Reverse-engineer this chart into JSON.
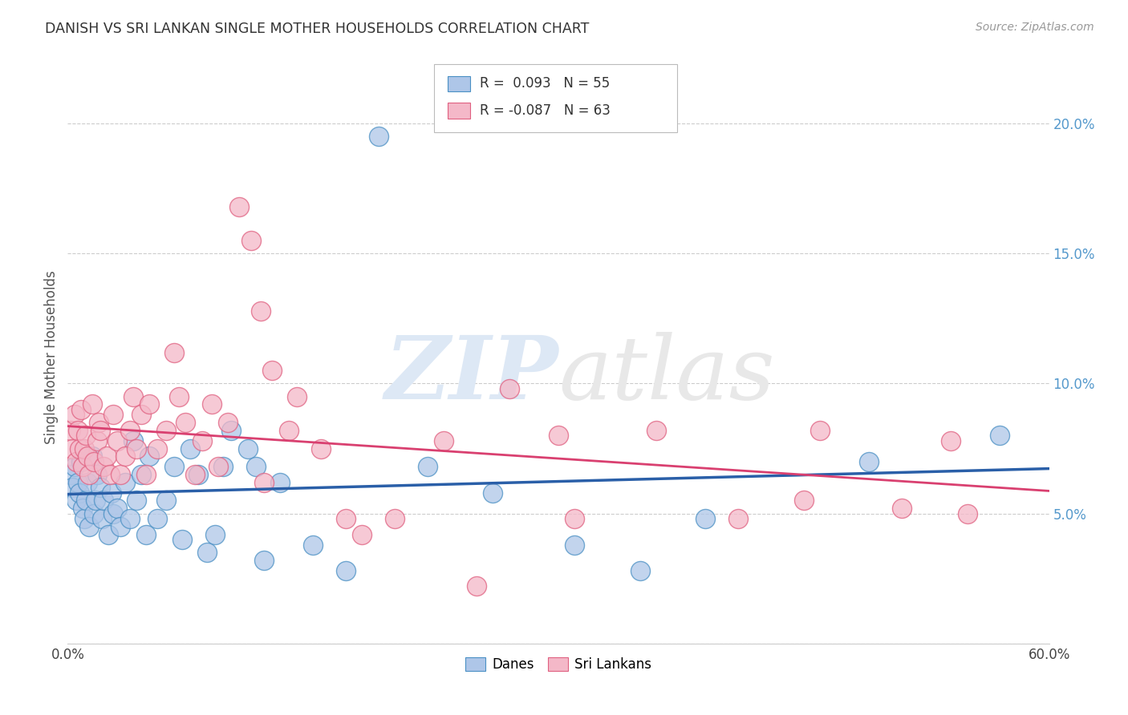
{
  "title": "DANISH VS SRI LANKAN SINGLE MOTHER HOUSEHOLDS CORRELATION CHART",
  "source": "Source: ZipAtlas.com",
  "ylabel": "Single Mother Households",
  "xlim": [
    0.0,
    0.6
  ],
  "ylim": [
    0.0,
    0.22
  ],
  "xticks": [
    0.0,
    0.1,
    0.2,
    0.3,
    0.4,
    0.5,
    0.6
  ],
  "xticklabels": [
    "0.0%",
    "",
    "",
    "",
    "",
    "",
    "60.0%"
  ],
  "yticks": [
    0.0,
    0.05,
    0.1,
    0.15,
    0.2
  ],
  "yticklabels_right": [
    "",
    "5.0%",
    "10.0%",
    "15.0%",
    "20.0%"
  ],
  "danes_R": 0.093,
  "danes_N": 55,
  "srilankans_R": -0.087,
  "srilankans_N": 63,
  "blue_fill": "#aec6e8",
  "blue_edge": "#4a90c4",
  "pink_fill": "#f4b8c8",
  "pink_edge": "#e06080",
  "blue_line": "#2a5fa8",
  "pink_line": "#d94070",
  "right_tick_color": "#5599cc",
  "watermark_color": "#dde8f5",
  "danes_x": [
    0.002,
    0.003,
    0.004,
    0.005,
    0.006,
    0.007,
    0.008,
    0.009,
    0.01,
    0.011,
    0.012,
    0.013,
    0.015,
    0.016,
    0.017,
    0.018,
    0.02,
    0.021,
    0.022,
    0.025,
    0.027,
    0.028,
    0.03,
    0.032,
    0.035,
    0.038,
    0.04,
    0.042,
    0.045,
    0.048,
    0.05,
    0.055,
    0.06,
    0.065,
    0.07,
    0.075,
    0.08,
    0.085,
    0.09,
    0.095,
    0.1,
    0.11,
    0.115,
    0.12,
    0.13,
    0.15,
    0.17,
    0.19,
    0.22,
    0.26,
    0.31,
    0.35,
    0.39,
    0.49,
    0.57
  ],
  "danes_y": [
    0.065,
    0.06,
    0.068,
    0.055,
    0.062,
    0.058,
    0.07,
    0.052,
    0.048,
    0.055,
    0.062,
    0.045,
    0.072,
    0.05,
    0.055,
    0.065,
    0.06,
    0.048,
    0.055,
    0.042,
    0.058,
    0.05,
    0.052,
    0.045,
    0.062,
    0.048,
    0.078,
    0.055,
    0.065,
    0.042,
    0.072,
    0.048,
    0.055,
    0.068,
    0.04,
    0.075,
    0.065,
    0.035,
    0.042,
    0.068,
    0.082,
    0.075,
    0.068,
    0.032,
    0.062,
    0.038,
    0.028,
    0.195,
    0.068,
    0.058,
    0.038,
    0.028,
    0.048,
    0.07,
    0.08
  ],
  "srilankans_x": [
    0.002,
    0.003,
    0.004,
    0.005,
    0.006,
    0.007,
    0.008,
    0.009,
    0.01,
    0.011,
    0.012,
    0.013,
    0.015,
    0.016,
    0.018,
    0.019,
    0.02,
    0.022,
    0.024,
    0.026,
    0.028,
    0.03,
    0.032,
    0.035,
    0.038,
    0.04,
    0.042,
    0.045,
    0.048,
    0.05,
    0.055,
    0.06,
    0.065,
    0.068,
    0.072,
    0.078,
    0.082,
    0.088,
    0.092,
    0.098,
    0.105,
    0.112,
    0.118,
    0.125,
    0.14,
    0.155,
    0.17,
    0.2,
    0.23,
    0.27,
    0.31,
    0.36,
    0.41,
    0.46,
    0.51,
    0.55,
    0.12,
    0.135,
    0.18,
    0.25,
    0.3,
    0.45,
    0.54
  ],
  "srilankans_y": [
    0.082,
    0.075,
    0.088,
    0.07,
    0.082,
    0.075,
    0.09,
    0.068,
    0.075,
    0.08,
    0.072,
    0.065,
    0.092,
    0.07,
    0.078,
    0.085,
    0.082,
    0.068,
    0.072,
    0.065,
    0.088,
    0.078,
    0.065,
    0.072,
    0.082,
    0.095,
    0.075,
    0.088,
    0.065,
    0.092,
    0.075,
    0.082,
    0.112,
    0.095,
    0.085,
    0.065,
    0.078,
    0.092,
    0.068,
    0.085,
    0.168,
    0.155,
    0.128,
    0.105,
    0.095,
    0.075,
    0.048,
    0.048,
    0.078,
    0.098,
    0.048,
    0.082,
    0.048,
    0.082,
    0.052,
    0.05,
    0.062,
    0.082,
    0.042,
    0.022,
    0.08,
    0.055,
    0.078
  ]
}
